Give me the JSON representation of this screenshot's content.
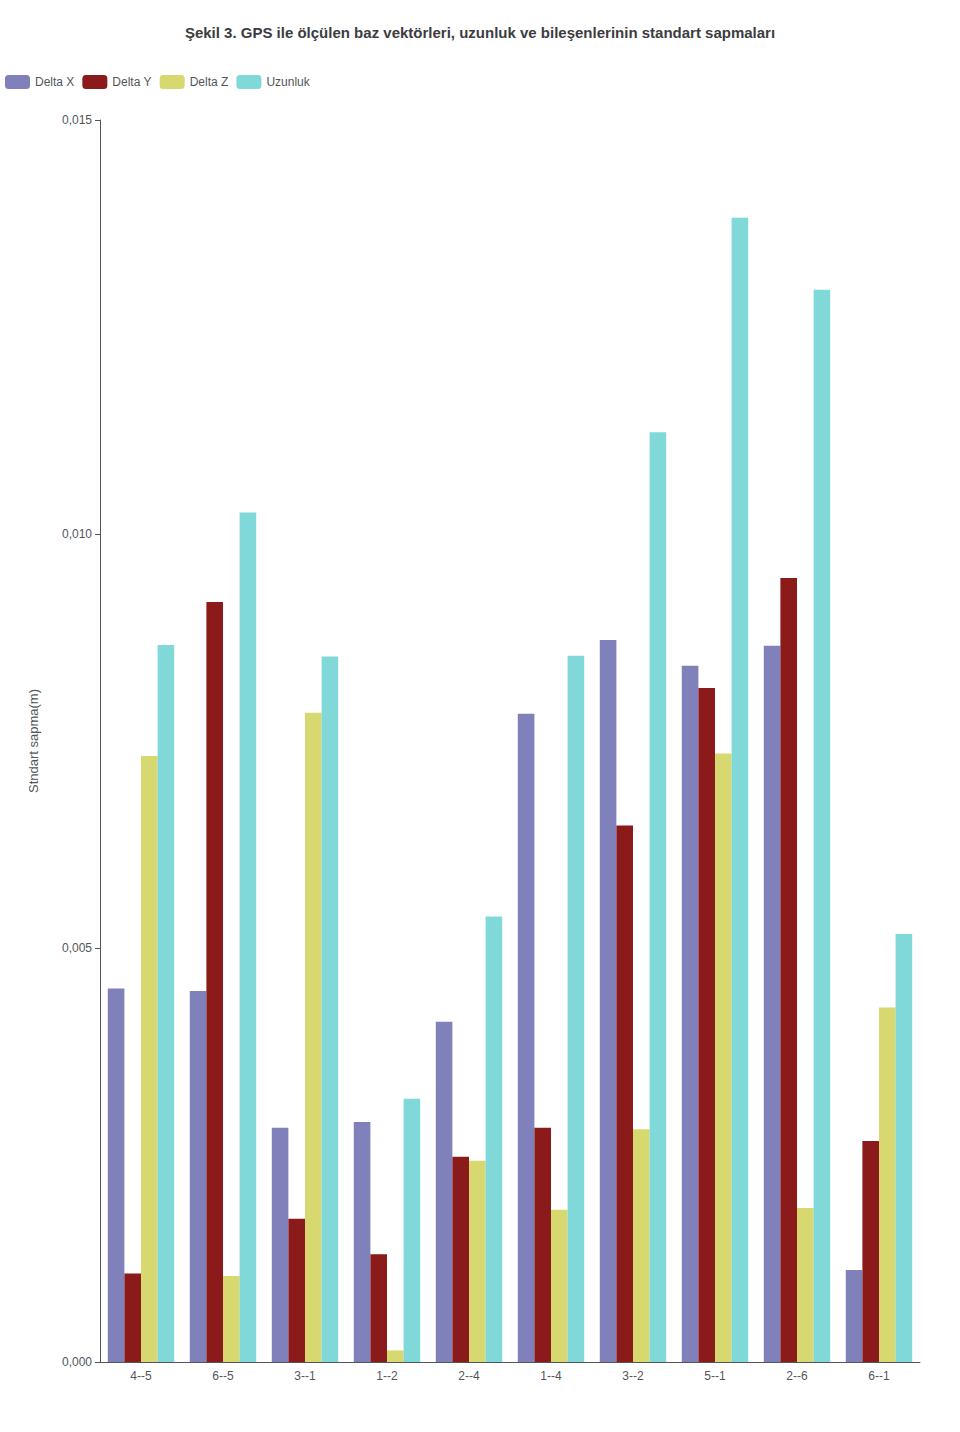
{
  "chart_data": {
    "type": "bar",
    "title": "Şekil 3. GPS ile ölçülen baz vektörleri, uzunluk ve bileşenlerinin standart sapmaları",
    "y_label": "Stndart sapma(m)",
    "categories": [
      "4--5",
      "6--5",
      "3--1",
      "1--2",
      "2--4",
      "1--4",
      "3--2",
      "5--1",
      "2--6",
      "6--1"
    ],
    "series": [
      {
        "name": "Delta X",
        "color": "#8080bb",
        "values": [
          0.00451,
          0.00448,
          0.00283,
          0.0029,
          0.00411,
          0.00783,
          0.00872,
          0.00841,
          0.00865,
          0.00111
        ]
      },
      {
        "name": "Delta Y",
        "color": "#8b1a1a",
        "values": [
          0.00107,
          0.00918,
          0.00173,
          0.0013,
          0.00248,
          0.00283,
          0.00648,
          0.00814,
          0.00947,
          0.00267
        ]
      },
      {
        "name": "Delta Z",
        "color": "#d8d870",
        "values": [
          0.00732,
          0.00104,
          0.00784,
          0.00014,
          0.00243,
          0.00184,
          0.00281,
          0.00735,
          0.00186,
          0.00428
        ]
      },
      {
        "name": "Uzunluk",
        "color": "#80d8d8",
        "values": [
          0.00866,
          0.01026,
          0.00852,
          0.00318,
          0.00538,
          0.00853,
          0.01123,
          0.01382,
          0.01295,
          0.00517
        ]
      }
    ],
    "ylim": [
      0,
      0.015
    ],
    "yticks": [
      {
        "value": 0,
        "label": "0,000"
      },
      {
        "value": 0.005,
        "label": "0,005"
      },
      {
        "value": 0.01,
        "label": "0,010"
      },
      {
        "value": 0.015,
        "label": "0,015"
      }
    ],
    "grid": false,
    "legend": "upper left"
  }
}
